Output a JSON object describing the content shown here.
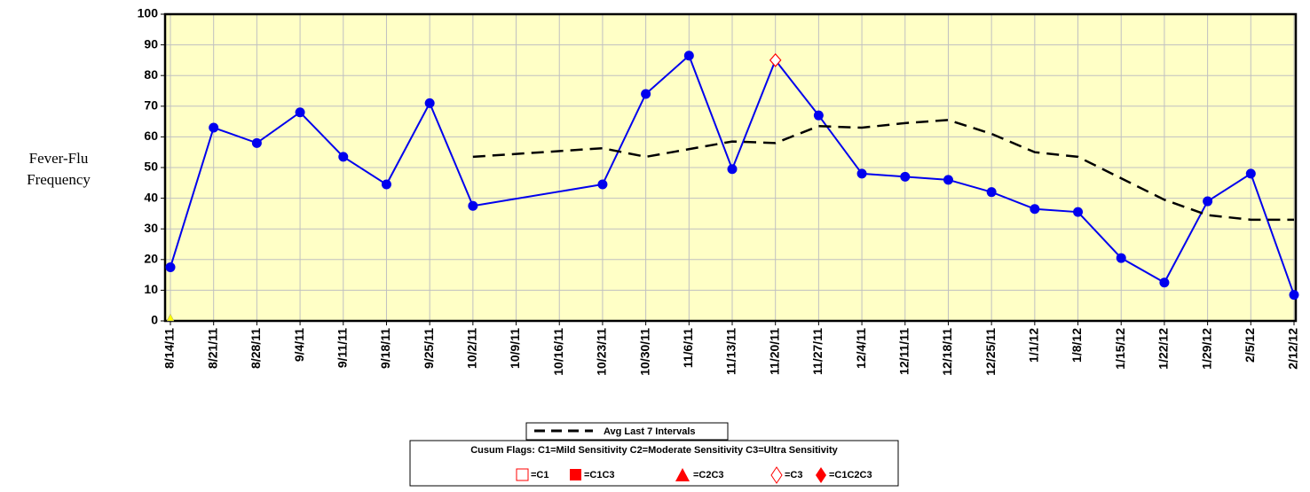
{
  "chart_data": {
    "type": "line",
    "ylabel": [
      "Fever-Flu",
      "Frequency"
    ],
    "categories": [
      "8/14/11",
      "8/21/11",
      "8/28/11",
      "9/4/11",
      "9/11/11",
      "9/18/11",
      "9/25/11",
      "10/2/11",
      "10/9/11",
      "10/16/11",
      "10/23/11",
      "10/30/11",
      "11/6/11",
      "11/13/11",
      "11/20/11",
      "11/27/11",
      "12/4/11",
      "12/11/11",
      "12/18/11",
      "12/25/11",
      "1/1/12",
      "1/8/12",
      "1/15/12",
      "1/22/12",
      "1/29/12",
      "2/5/12",
      "2/12/12"
    ],
    "series": [
      {
        "color": "#0000ee",
        "style": "solid",
        "markers": true,
        "x": [
          "8/14/11",
          "8/21/11",
          "8/28/11",
          "9/4/11",
          "9/11/11",
          "9/18/11",
          "9/25/11",
          "10/2/11",
          "10/23/11",
          "10/30/11",
          "11/6/11",
          "11/13/11",
          "11/20/11",
          "11/27/11",
          "12/4/11",
          "12/11/11",
          "12/18/11",
          "12/25/11",
          "1/1/12",
          "1/8/12",
          "1/15/12",
          "1/22/12",
          "1/29/12",
          "2/5/12",
          "2/12/12"
        ],
        "values": [
          17.5,
          63,
          58,
          68,
          53.5,
          44.5,
          71,
          37.5,
          44.5,
          74,
          86.5,
          49.5,
          85,
          67,
          48,
          47,
          46,
          42,
          36.5,
          35.5,
          20.5,
          12.5,
          39,
          48,
          8.5
        ]
      },
      {
        "name": "Avg Last 7 Intervals",
        "color": "#000000",
        "style": "dashed",
        "markers": false,
        "x": [
          "10/2/11",
          "10/23/11",
          "10/30/11",
          "11/6/11",
          "11/13/11",
          "11/20/11",
          "11/27/11",
          "12/4/11",
          "12/11/11",
          "12/18/11",
          "12/25/11",
          "1/1/12",
          "1/8/12",
          "1/15/12",
          "1/22/12",
          "1/29/12",
          "2/5/12",
          "2/12/12"
        ],
        "values": [
          53.5,
          56.3,
          53.5,
          56,
          58.5,
          58,
          63.5,
          63,
          64.5,
          65.5,
          61,
          55,
          53.5,
          46.5,
          39.5,
          34.5,
          33,
          33
        ]
      }
    ],
    "flags": [
      {
        "x": "11/20/11",
        "value": 85,
        "shape": "diamond-open",
        "color": "#ff0000"
      },
      {
        "x": "8/14/11",
        "value": 0,
        "shape": "triangle",
        "color": "#ffff00"
      }
    ],
    "cusum_legend": {
      "title": "Cusum Flags:  C1=Mild Sensitivity  C2=Moderate Sensitivity  C3=Ultra Sensitivity",
      "items": [
        "=C1",
        "=C1C3",
        "=C2C3",
        "=C3",
        "=C1C2C3"
      ]
    },
    "ylim": [
      0,
      100
    ],
    "yticks": [
      0,
      10,
      20,
      30,
      40,
      50,
      60,
      70,
      80,
      90,
      100
    ],
    "grid": true,
    "background": "#ffffc6"
  }
}
